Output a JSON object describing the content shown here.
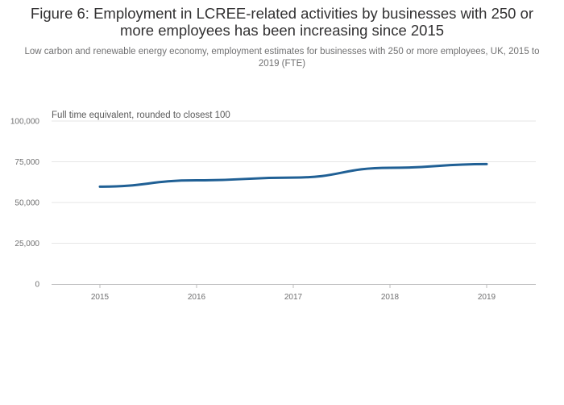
{
  "chart_data": {
    "type": "line",
    "title": "Figure 6: Employment in LCREE-related activities by businesses with 250 or more employees has been increasing since 2015",
    "subtitle": "Low carbon and renewable energy economy, employment estimates for businesses with 250 or more employees, UK, 2015 to 2019 (FTE)",
    "annotation": "Full time equivalent, rounded to closest 100",
    "categories": [
      "2015",
      "2016",
      "2017",
      "2018",
      "2019"
    ],
    "series": [
      {
        "name": "Employment (FTE)",
        "values": [
          59700,
          63600,
          65300,
          71300,
          73600
        ]
      }
    ],
    "ylim": [
      0,
      100000
    ],
    "yticks": [
      0,
      25000,
      50000,
      75000,
      100000
    ],
    "ytick_labels": [
      "0",
      "25,000",
      "50,000",
      "75,000",
      "100,000"
    ],
    "xlabel": "",
    "ylabel": "",
    "grid": true,
    "line_color": "#206095"
  }
}
